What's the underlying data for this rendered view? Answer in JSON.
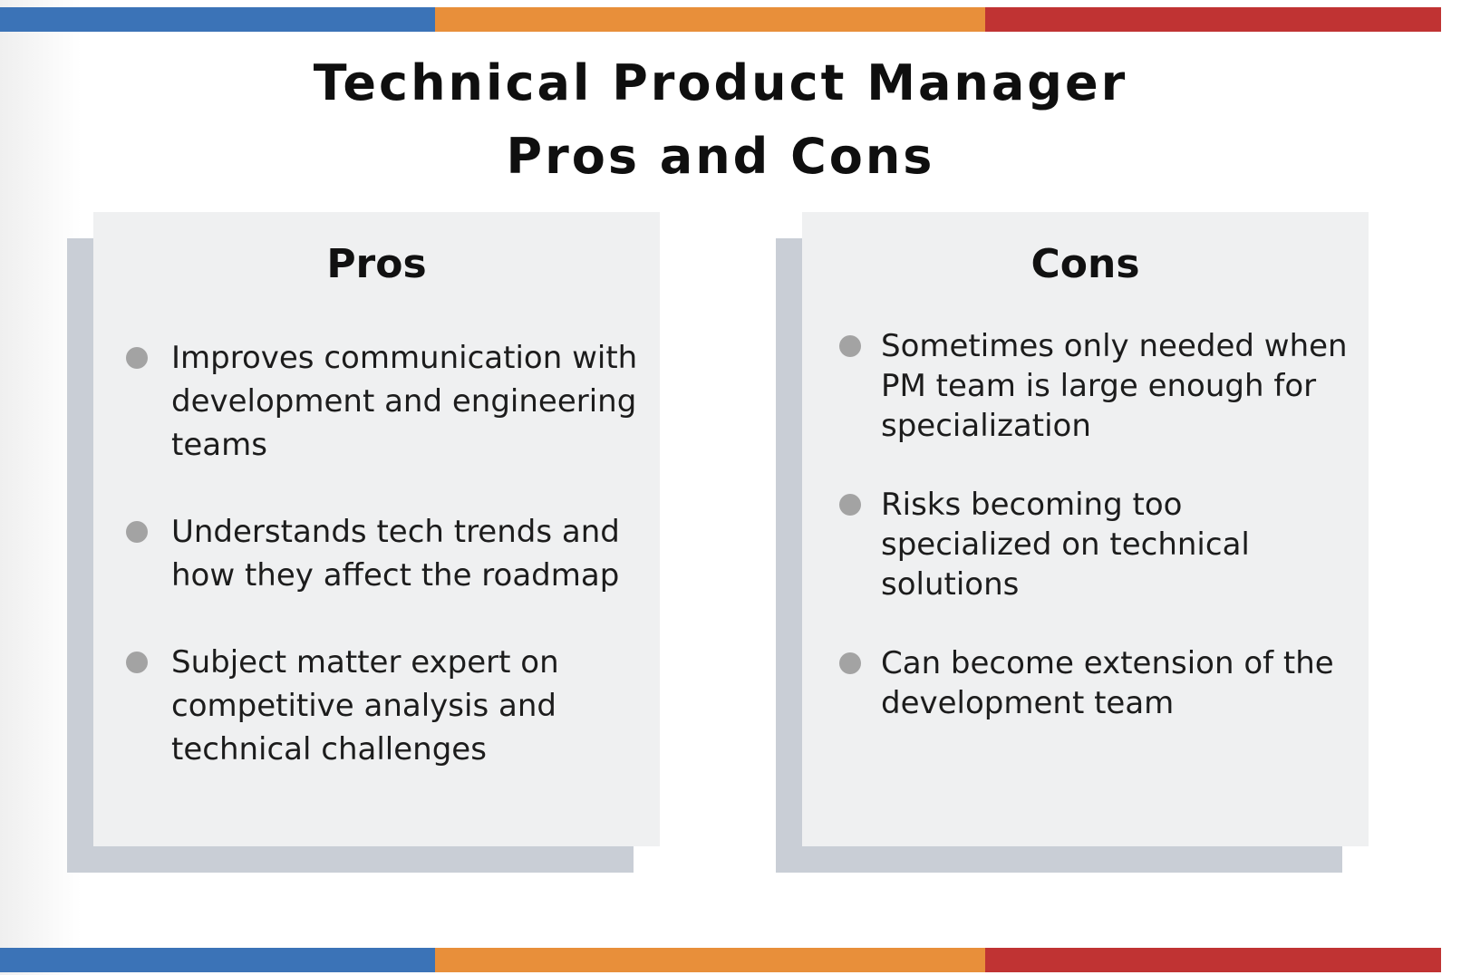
{
  "colors": {
    "stripe_blue": "#3b73b7",
    "stripe_orange": "#e88f3a",
    "stripe_red": "#c03333"
  },
  "title": {
    "line1": "Technical Product Manager",
    "line2": "Pros and Cons"
  },
  "pros": {
    "heading": "Pros",
    "items": [
      "Improves communication with development and engineering teams",
      "Understands tech trends and how they affect the roadmap",
      "Subject matter expert on competitive analysis and technical challenges"
    ]
  },
  "cons": {
    "heading": "Cons",
    "items": [
      "Sometimes only needed when PM team is large enough for specialization",
      "Risks becoming too specialized on technical solutions",
      "Can become extension of the development team"
    ]
  }
}
